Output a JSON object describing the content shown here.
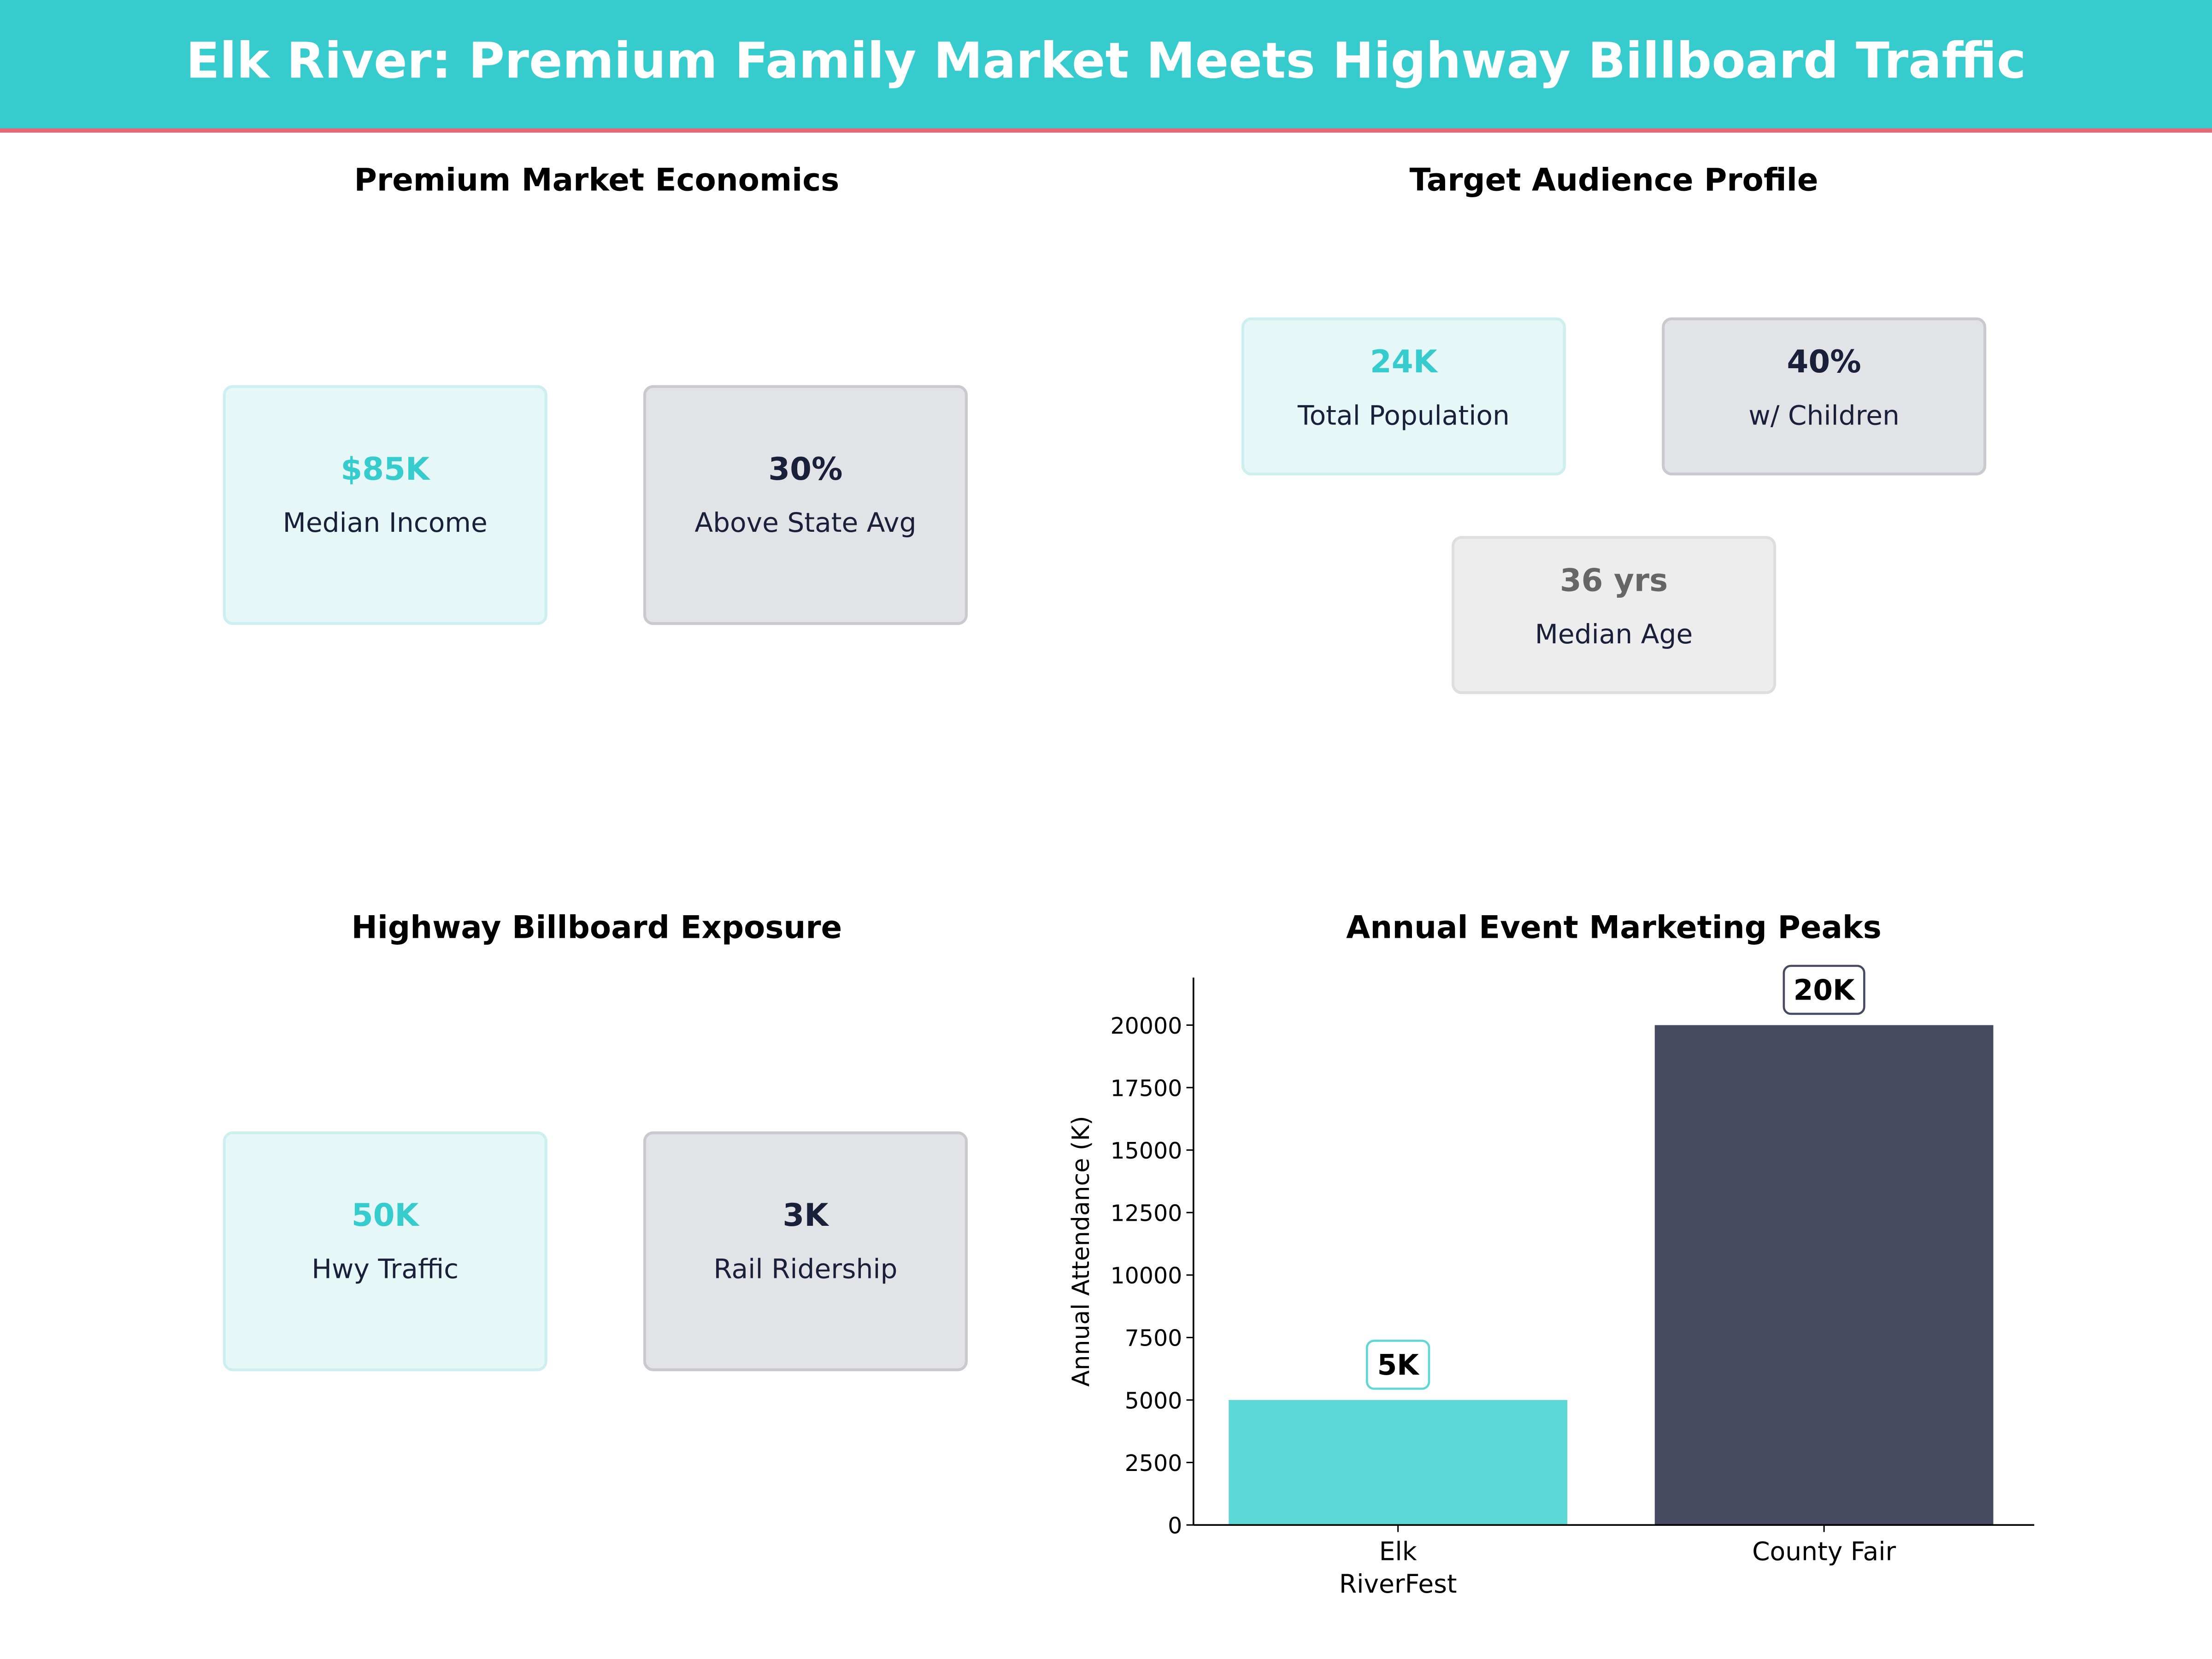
{
  "header": {
    "title": "Elk River: Premium Family Market Meets Highway Billboard Traffic"
  },
  "panels": {
    "economics": {
      "title": "Premium Market Economics",
      "cards": [
        {
          "value": "$85K",
          "label": "Median Income"
        },
        {
          "value": "30%",
          "label": "Above State Avg"
        }
      ]
    },
    "audience": {
      "title": "Target Audience Profile",
      "cards": [
        {
          "value": "24K",
          "label": "Total Population"
        },
        {
          "value": "40%",
          "label": "w/ Children"
        },
        {
          "value": "36 yrs",
          "label": "Median Age"
        }
      ]
    },
    "billboard": {
      "title": "Highway Billboard Exposure",
      "cards": [
        {
          "value": "50K",
          "label": "Hwy Traffic"
        },
        {
          "value": "3K",
          "label": "Rail Ridership"
        }
      ]
    }
  },
  "colors": {
    "header": "#36CBCC",
    "accent_line": "#E8677A",
    "teal": "#5ED8D6",
    "dark": "#454A60"
  },
  "chart_data": {
    "type": "bar",
    "title": "Annual Event Marketing Peaks",
    "categories": [
      "Elk\nRiverFest",
      "County Fair"
    ],
    "values": [
      5000,
      20000
    ],
    "data_labels": [
      "5K",
      "20K"
    ],
    "bar_colors": [
      "#5ED8D6",
      "#454A60"
    ],
    "xlabel": "",
    "ylabel": "Annual Attendance (K)",
    "ylim": [
      0,
      21900
    ],
    "yticks": [
      0,
      2500,
      5000,
      7500,
      10000,
      12500,
      15000,
      17500,
      20000
    ],
    "grid": false
  }
}
